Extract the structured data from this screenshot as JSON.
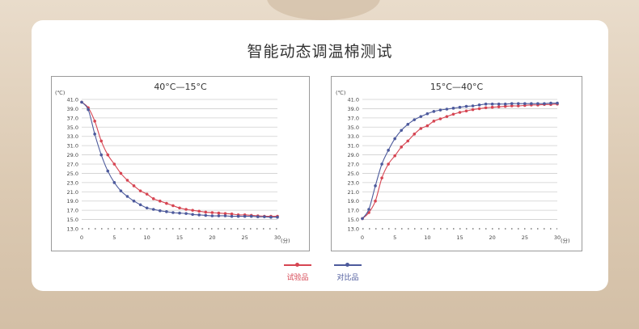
{
  "page": {
    "title": "智能动态调温棉测试"
  },
  "legend": [
    {
      "label": "试验品",
      "color": "#d64552"
    },
    {
      "label": "对比品",
      "color": "#4d5a9c"
    }
  ],
  "chart_data": [
    {
      "type": "line",
      "title": "40°C—15°C",
      "y_unit_label": "(℃)",
      "x_unit_label": "(分)",
      "ylim": [
        13.0,
        41.0
      ],
      "xlim": [
        0,
        30
      ],
      "y_ticks": [
        "41.0",
        "39.0",
        "37.0",
        "35.0",
        "33.0",
        "31.0",
        "29.0",
        "27.0",
        "25.0",
        "23.0",
        "21.0",
        "19.0",
        "17.0",
        "15.0",
        "13.0"
      ],
      "x_ticks": [
        "0",
        "5",
        "10",
        "15",
        "20",
        "25",
        "30"
      ],
      "grid": true,
      "series": [
        {
          "name": "试验品",
          "color": "#d64552",
          "x": [
            0,
            1,
            2,
            3,
            4,
            5,
            6,
            7,
            8,
            9,
            10,
            11,
            12,
            13,
            14,
            15,
            16,
            17,
            18,
            19,
            20,
            21,
            22,
            23,
            24,
            25,
            26,
            27,
            28,
            29,
            30
          ],
          "y": [
            40.4,
            39.2,
            36.3,
            32.0,
            29.0,
            27.0,
            25.0,
            23.5,
            22.3,
            21.2,
            20.5,
            19.5,
            19.0,
            18.5,
            18.0,
            17.5,
            17.2,
            17.0,
            16.8,
            16.6,
            16.5,
            16.4,
            16.3,
            16.2,
            16.0,
            16.0,
            15.9,
            15.8,
            15.7,
            15.7,
            15.7
          ]
        },
        {
          "name": "对比品",
          "color": "#4d5a9c",
          "x": [
            0,
            1,
            2,
            3,
            4,
            5,
            6,
            7,
            8,
            9,
            10,
            11,
            12,
            13,
            14,
            15,
            16,
            17,
            18,
            19,
            20,
            21,
            22,
            23,
            24,
            25,
            26,
            27,
            28,
            29,
            30
          ],
          "y": [
            40.4,
            38.8,
            33.5,
            29.0,
            25.5,
            23.0,
            21.2,
            20.0,
            19.0,
            18.2,
            17.5,
            17.2,
            16.9,
            16.7,
            16.5,
            16.4,
            16.3,
            16.1,
            16.0,
            15.9,
            15.8,
            15.8,
            15.8,
            15.7,
            15.7,
            15.7,
            15.7,
            15.6,
            15.6,
            15.5,
            15.5
          ]
        }
      ]
    },
    {
      "type": "line",
      "title": "15°C—40°C",
      "y_unit_label": "(℃)",
      "x_unit_label": "(分)",
      "ylim": [
        13.0,
        41.0
      ],
      "xlim": [
        0,
        30
      ],
      "y_ticks": [
        "41.0",
        "39.0",
        "37.0",
        "35.0",
        "33.0",
        "31.0",
        "29.0",
        "27.0",
        "25.0",
        "23.0",
        "21.0",
        "19.0",
        "17.0",
        "15.0",
        "13.0"
      ],
      "x_ticks": [
        "0",
        "5",
        "10",
        "15",
        "20",
        "25",
        "30"
      ],
      "grid": true,
      "series": [
        {
          "name": "试验品",
          "color": "#d64552",
          "x": [
            0,
            1,
            2,
            3,
            4,
            5,
            6,
            7,
            8,
            9,
            10,
            11,
            12,
            13,
            14,
            15,
            16,
            17,
            18,
            19,
            20,
            21,
            22,
            23,
            24,
            25,
            26,
            27,
            28,
            29,
            30
          ],
          "y": [
            15.2,
            16.5,
            19.0,
            24.0,
            27.0,
            28.8,
            30.7,
            32.0,
            33.5,
            34.7,
            35.3,
            36.3,
            36.8,
            37.3,
            37.8,
            38.2,
            38.5,
            38.8,
            39.0,
            39.2,
            39.3,
            39.4,
            39.5,
            39.6,
            39.6,
            39.7,
            39.8,
            39.8,
            39.9,
            39.9,
            40.0
          ]
        },
        {
          "name": "对比品",
          "color": "#4d5a9c",
          "x": [
            0,
            1,
            2,
            3,
            4,
            5,
            6,
            7,
            8,
            9,
            10,
            11,
            12,
            13,
            14,
            15,
            16,
            17,
            18,
            19,
            20,
            21,
            22,
            23,
            24,
            25,
            26,
            27,
            28,
            29,
            30
          ],
          "y": [
            15.2,
            17.2,
            22.3,
            27.0,
            30.0,
            32.5,
            34.3,
            35.6,
            36.6,
            37.3,
            37.9,
            38.4,
            38.7,
            38.9,
            39.1,
            39.3,
            39.5,
            39.6,
            39.8,
            40.0,
            40.0,
            40.0,
            40.0,
            40.1,
            40.1,
            40.1,
            40.1,
            40.1,
            40.1,
            40.2,
            40.2
          ]
        }
      ]
    }
  ]
}
